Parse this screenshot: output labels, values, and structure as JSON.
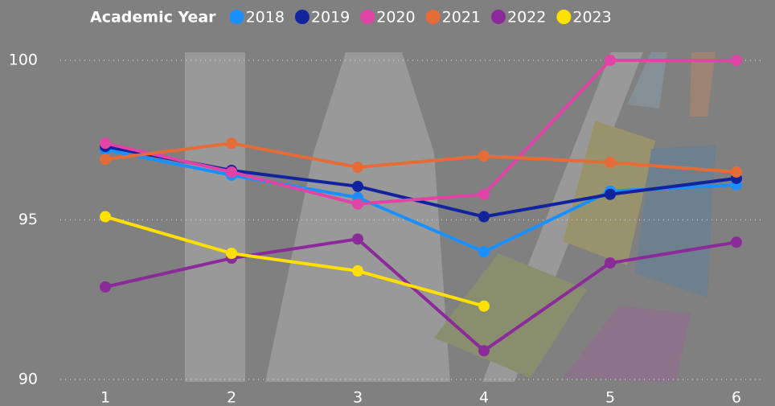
{
  "chart_data": {
    "type": "line",
    "legend_title": "Academic Year",
    "categories": [
      "1",
      "2",
      "3",
      "4",
      "5",
      "6"
    ],
    "series": [
      {
        "name": "2018",
        "color": "#1A90FF",
        "values": [
          97.2,
          96.4,
          95.7,
          94.0,
          95.9,
          96.1
        ]
      },
      {
        "name": "2019",
        "color": "#12239E",
        "values": [
          97.3,
          96.55,
          96.05,
          95.1,
          95.8,
          96.3
        ]
      },
      {
        "name": "2020",
        "color": "#E044A7",
        "values": [
          97.4,
          96.5,
          95.5,
          95.8,
          100,
          100
        ]
      },
      {
        "name": "2021",
        "color": "#E66C37",
        "values": [
          96.9,
          97.4,
          96.65,
          97.0,
          96.8,
          96.5
        ]
      },
      {
        "name": "2022",
        "color": "#8B2A99",
        "values": [
          92.9,
          93.8,
          94.4,
          90.9,
          93.65,
          94.3
        ]
      },
      {
        "name": "2023",
        "color": "#FFE000",
        "values": [
          95.1,
          93.95,
          93.4,
          92.3,
          null,
          null
        ]
      }
    ],
    "ylim": [
      90,
      100
    ],
    "yticks": [
      90,
      95,
      100
    ],
    "grid": true
  }
}
